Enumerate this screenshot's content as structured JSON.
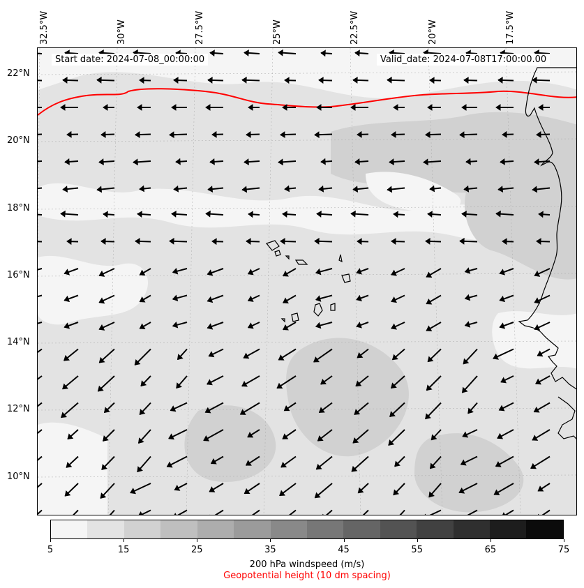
{
  "header": {
    "start_date": "Start date: 2024-07-08_00:00:00",
    "valid_date": "Valid_date: 2024-07-08T17:00:00.00"
  },
  "longitude_labels": [
    "32.5°W",
    "30°W",
    "27.5°W",
    "25°W",
    "22.5°W",
    "20°W",
    "17.5°W"
  ],
  "latitude_labels": [
    "22°N",
    "20°N",
    "18°N",
    "16°N",
    "14°N",
    "12°N",
    "10°N"
  ],
  "colorbar": {
    "ticks": [
      "5",
      "15",
      "25",
      "35",
      "45",
      "55",
      "65",
      "75"
    ],
    "colors": [
      "#f5f5f5",
      "#e3e3e3",
      "#d1d1d1",
      "#bfbfbf",
      "#adadad",
      "#9b9b9b",
      "#898989",
      "#777777",
      "#656565",
      "#535353",
      "#414141",
      "#2f2f2f",
      "#1d1d1d",
      "#0b0b0b"
    ],
    "label": "200 hPa windspeed (m/s)",
    "sublabel": "Geopotential height (10 dm spacing)"
  },
  "colors": {
    "geopotential_contour": "#ff0000",
    "coastline": "#000000",
    "wind_arrows": "#000000"
  }
}
